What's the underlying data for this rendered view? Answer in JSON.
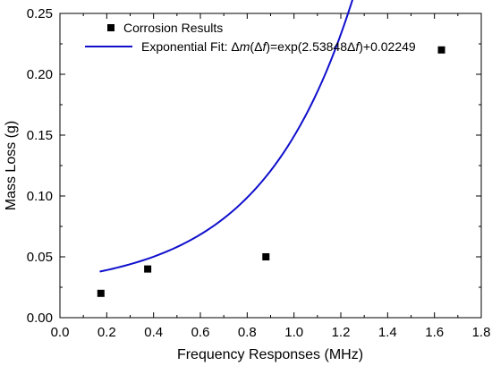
{
  "chart_data": {
    "type": "scatter",
    "xlabel": "Frequency Responses (MHz)",
    "ylabel": "Mass Loss (g)",
    "xlim": [
      0.0,
      1.8
    ],
    "ylim": [
      0.0,
      0.25
    ],
    "x_ticks": [
      "0.0",
      "0.2",
      "0.4",
      "0.6",
      "0.8",
      "1.0",
      "1.2",
      "1.4",
      "1.6",
      "1.8"
    ],
    "y_ticks": [
      "0.00",
      "0.05",
      "0.10",
      "0.15",
      "0.20",
      "0.25"
    ],
    "x_tick_values": [
      0.0,
      0.2,
      0.4,
      0.6,
      0.8,
      1.0,
      1.2,
      1.4,
      1.6,
      1.8
    ],
    "y_tick_values": [
      0.0,
      0.05,
      0.1,
      0.15,
      0.2,
      0.25
    ],
    "grid": false,
    "legend_position": "top-left",
    "series": [
      {
        "name": "Corrosion Results",
        "kind": "scatter",
        "marker": "square",
        "color": "#000000",
        "x": [
          0.175,
          0.375,
          0.88,
          1.63
        ],
        "y": [
          0.02,
          0.04,
          0.05,
          0.22
        ]
      },
      {
        "name_prefix": "Exponential Fit: ",
        "name_formula_parts": [
          {
            "text": "Δ",
            "italic": false
          },
          {
            "text": "m",
            "italic": true
          },
          {
            "text": "(Δ",
            "italic": false
          },
          {
            "text": "f",
            "italic": true
          },
          {
            "text": ")=exp(2.53848Δ",
            "italic": false
          },
          {
            "text": "f",
            "italic": true
          },
          {
            "text": ")+0.02249",
            "italic": false
          }
        ],
        "kind": "line",
        "color": "#1010cc",
        "formula": {
          "a": 2.53848,
          "b": 0.02249
        },
        "x_range": [
          0.17,
          1.63
        ]
      }
    ]
  }
}
